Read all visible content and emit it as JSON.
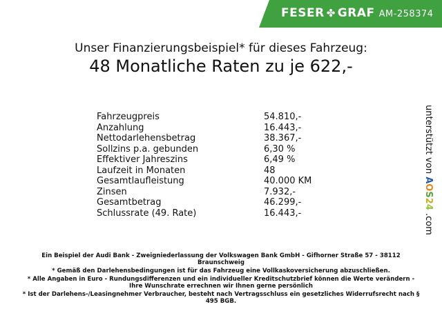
{
  "header": {
    "brand_left": "FESER",
    "brand_right": "GRAF",
    "ad_id": "AM-258374",
    "logo_icon": "clover-icon",
    "accent": "#3fa140"
  },
  "title": {
    "line1": "Unser Finanzierungsbeispiel* für dieses Fahrzeug:",
    "line2": "48 Monatliche Raten zu je 622,-"
  },
  "rows": [
    {
      "label": "Fahrzeugpreis",
      "value": "54.810,-"
    },
    {
      "label": "Anzahlung",
      "value": "16.443,-"
    },
    {
      "label": "Nettodarlehensbetrag",
      "value": "38.367,-"
    },
    {
      "label": "Sollzins p.a. gebunden",
      "value": "6,30 %"
    },
    {
      "label": "Effektiver Jahreszins",
      "value": "6,49 %"
    },
    {
      "label": "Laufzeit in Monaten",
      "value": "48"
    },
    {
      "label": "Gesamtlaufleistung",
      "value": "40.000 KM"
    },
    {
      "label": "Zinsen",
      "value": "7.932,-"
    },
    {
      "label": "Gesamtbetrag",
      "value": "46.299,-"
    },
    {
      "label": "Schlussrate (49. Rate)",
      "value": "16.443,-"
    }
  ],
  "side": {
    "prefix": "unterstützt von",
    "logo": [
      "A",
      "O",
      "S",
      "2",
      "4"
    ],
    "suffix": ".com"
  },
  "footer": [
    "Ein Beispiel der Audi Bank - Zweigniederlassung der Volkswagen Bank GmbH - Gifhorner Straße 57 - 38112 Braunschweig",
    "* Gemäß den Darlehensbedingungen ist für das Fahrzeug eine Vollkaskoversicherung abzuschließen.",
    "* Alle Angaben in Euro - Rundungsdifferenzen und ein individueller Kreditschutzbrief können die Werte verändern - Ihre Wunschrate errechnen wir Ihnen gerne persönlich",
    "* Ist der Darlehens-/Leasingnehmer Verbraucher, besteht nach Vertragsschluss ein gesetzliches Widerrufsrecht nach § 495 BGB."
  ]
}
